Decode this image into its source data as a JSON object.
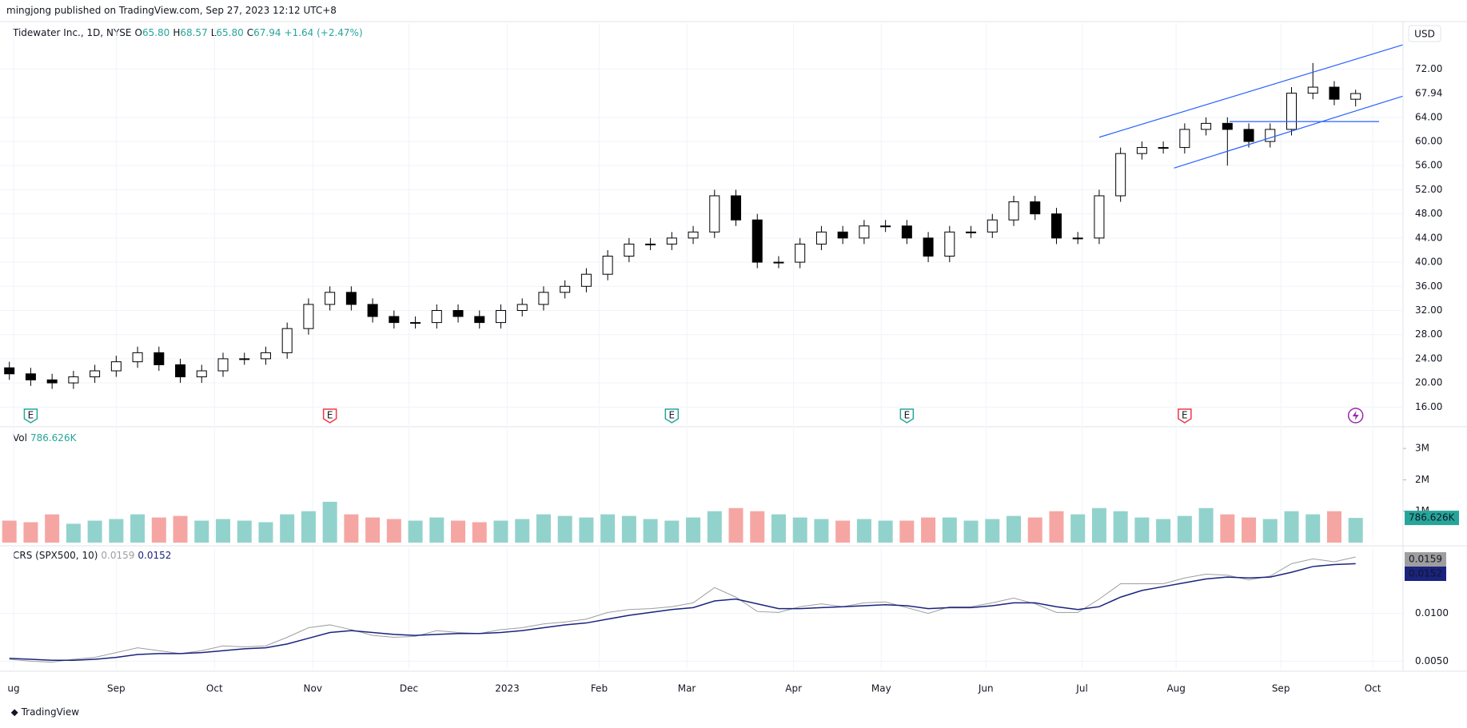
{
  "header": {
    "publisher": "mingjong published on TradingView.com, Sep 27, 2023 12:12 UTC+8",
    "footer": "TradingView"
  },
  "chart_data": [
    {
      "type": "candlestick",
      "title": "Tidewater Inc., 1D, NYSE",
      "legend": [
        {
          "key": "O",
          "text": "65.80"
        },
        {
          "key": "H",
          "text": "68.57"
        },
        {
          "key": "L",
          "text": "65.80"
        },
        {
          "key": "C",
          "text": "67.94"
        }
      ],
      "change": "+1.64 (+2.47%)",
      "currency": "USD",
      "last_label": "67.94",
      "up_color": "#ffffff",
      "down_color": "#000000",
      "grid": true,
      "open": [
        22.5,
        21.5,
        20.5,
        20,
        21,
        22,
        23.5,
        25,
        23,
        21,
        22,
        24,
        24,
        25,
        29,
        33,
        35,
        33,
        31,
        30,
        30,
        32,
        31,
        30,
        32,
        33,
        35,
        36,
        38,
        41,
        43,
        43,
        44,
        45,
        51,
        47,
        40,
        40,
        43,
        45,
        44,
        46,
        46,
        44,
        41,
        45,
        45,
        47,
        50,
        48,
        44,
        44,
        51,
        58,
        59,
        59,
        62,
        63,
        62,
        60,
        62,
        68,
        69,
        67
      ],
      "high": [
        23.5,
        22.5,
        21.5,
        22,
        23,
        24.5,
        26,
        26,
        24,
        23,
        25,
        25,
        26,
        30,
        34,
        36,
        36,
        34,
        32,
        31,
        33,
        33,
        32,
        33,
        34,
        36,
        37,
        39,
        42,
        44,
        44,
        45,
        46,
        52,
        52,
        48,
        41,
        44,
        46,
        46,
        47,
        47,
        47,
        45,
        46,
        46,
        48,
        51,
        51,
        49,
        45,
        52,
        59,
        60,
        60,
        63,
        64,
        64,
        63,
        63,
        69,
        73,
        70,
        68.57
      ],
      "low": [
        20.5,
        19.5,
        19,
        19,
        20,
        21,
        22.5,
        22,
        20,
        20,
        21,
        23,
        23,
        24,
        28,
        32,
        32,
        30,
        29,
        29,
        29,
        30,
        29,
        29,
        31,
        32,
        34,
        35,
        37,
        40,
        42,
        42,
        43,
        44,
        46,
        39,
        39,
        39,
        42,
        43,
        43,
        45,
        43,
        40,
        40,
        44,
        44,
        46,
        47,
        43,
        43,
        43,
        50,
        57,
        58,
        58,
        61,
        56,
        59,
        59,
        61,
        67,
        66,
        65.8
      ],
      "close": [
        21.5,
        20.5,
        20,
        21,
        22,
        23.5,
        25,
        23,
        21,
        22,
        24,
        24,
        25,
        29,
        33,
        35,
        33,
        31,
        30,
        30,
        32,
        31,
        30,
        32,
        33,
        35,
        36,
        38,
        41,
        43,
        43,
        44,
        45,
        51,
        47,
        40,
        40,
        43,
        45,
        44,
        46,
        46,
        44,
        41,
        45,
        45,
        47,
        50,
        48,
        44,
        44,
        51,
        58,
        59,
        59,
        62,
        63,
        62,
        60,
        62,
        68,
        69,
        67,
        67.94
      ],
      "ylim": [
        13,
        79.6
      ],
      "yticks": [
        {
          "value": 16,
          "label": "16.00"
        },
        {
          "value": 20,
          "label": "20.00"
        },
        {
          "value": 24,
          "label": "24.00"
        },
        {
          "value": 28,
          "label": "28.00"
        },
        {
          "value": 32,
          "label": "32.00"
        },
        {
          "value": 36,
          "label": "36.00"
        },
        {
          "value": 40,
          "label": "40.00"
        },
        {
          "value": 44,
          "label": "44.00"
        },
        {
          "value": 48,
          "label": "48.00"
        },
        {
          "value": 52,
          "label": "52.00"
        },
        {
          "value": 56,
          "label": "56.00"
        },
        {
          "value": 60,
          "label": "60.00"
        },
        {
          "value": 64,
          "label": "64.00"
        },
        {
          "value": 72,
          "label": "72.00"
        }
      ],
      "xticks": [
        {
          "value": 0.2,
          "label": "ug"
        },
        {
          "value": 5.0,
          "label": "Sep"
        },
        {
          "value": 9.6,
          "label": "Oct"
        },
        {
          "value": 14.2,
          "label": "Nov"
        },
        {
          "value": 18.7,
          "label": "Dec"
        },
        {
          "value": 23.3,
          "label": "2023"
        },
        {
          "value": 27.6,
          "label": "Feb"
        },
        {
          "value": 31.7,
          "label": "Mar"
        },
        {
          "value": 36.7,
          "label": "Apr"
        },
        {
          "value": 40.8,
          "label": "May"
        },
        {
          "value": 45.7,
          "label": "Jun"
        },
        {
          "value": 50.2,
          "label": "Jul"
        },
        {
          "value": 54.6,
          "label": "Aug"
        },
        {
          "value": 59.5,
          "label": "Sep"
        },
        {
          "value": 63.8,
          "label": "Oct"
        }
      ],
      "trendlines": [
        {
          "color": "#2962ff",
          "from": [
            51.0,
            60.7
          ],
          "to": [
            65.2,
            76.0
          ]
        },
        {
          "color": "#2962ff",
          "from": [
            54.5,
            55.6
          ],
          "to": [
            65.2,
            67.5
          ]
        },
        {
          "color": "#2962ff",
          "from": [
            57.1,
            63.3
          ],
          "to": [
            64.1,
            63.3
          ]
        }
      ],
      "events": [
        {
          "index": 1,
          "label": "E",
          "color": "#26a69a"
        },
        {
          "index": 15,
          "label": "E",
          "color": "#f23645"
        },
        {
          "index": 31,
          "label": "E",
          "color": "#26a69a"
        },
        {
          "index": 42,
          "label": "E",
          "color": "#26a69a"
        },
        {
          "index": 55,
          "label": "E",
          "color": "#f23645"
        },
        {
          "index": 63,
          "color": "#9c27b0"
        }
      ]
    },
    {
      "type": "bar",
      "title": "Vol",
      "legend_value": "786.626K",
      "last_label": "786.626K",
      "up_color": "#92d2cc",
      "down_color": "#f5a6a3",
      "label_color": "#26a69a",
      "values": [
        700000,
        650000,
        900000,
        600000,
        700000,
        750000,
        900000,
        800000,
        850000,
        700000,
        750000,
        700000,
        650000,
        900000,
        1000000,
        1300000,
        900000,
        800000,
        750000,
        700000,
        800000,
        700000,
        650000,
        700000,
        750000,
        900000,
        850000,
        800000,
        900000,
        850000,
        750000,
        700000,
        800000,
        1000000,
        1100000,
        1000000,
        900000,
        800000,
        750000,
        700000,
        750000,
        700000,
        700000,
        800000,
        800000,
        700000,
        750000,
        850000,
        800000,
        1000000,
        900000,
        1100000,
        1000000,
        800000,
        750000,
        850000,
        1100000,
        900000,
        800000,
        750000,
        1000000,
        900000,
        1000000,
        786626
      ],
      "ylim": [
        0,
        3640000
      ],
      "yticks": [
        {
          "value": 1000000,
          "label": "1M"
        },
        {
          "value": 2000000,
          "label": "2M"
        },
        {
          "value": 3000000,
          "label": "3M"
        }
      ]
    },
    {
      "type": "line",
      "title": "CRS (SPX500, 10)",
      "series": [
        {
          "color": "#9e9e9e",
          "value_label": "0.0159",
          "values": [
            0.0052,
            0.005,
            0.0049,
            0.0052,
            0.0054,
            0.0059,
            0.0064,
            0.0061,
            0.0058,
            0.0061,
            0.0066,
            0.0065,
            0.0066,
            0.0075,
            0.0085,
            0.0088,
            0.0083,
            0.0077,
            0.0075,
            0.0076,
            0.0082,
            0.008,
            0.0079,
            0.0083,
            0.0085,
            0.0089,
            0.0091,
            0.0094,
            0.0101,
            0.0104,
            0.0105,
            0.0107,
            0.0111,
            0.0127,
            0.0117,
            0.0102,
            0.0101,
            0.0107,
            0.011,
            0.0107,
            0.0111,
            0.0112,
            0.0106,
            0.01,
            0.0107,
            0.0107,
            0.0111,
            0.0116,
            0.011,
            0.0101,
            0.0101,
            0.0115,
            0.0131,
            0.0131,
            0.0131,
            0.0137,
            0.0141,
            0.014,
            0.0135,
            0.0139,
            0.0152,
            0.0157,
            0.0154,
            0.0159
          ]
        },
        {
          "color": "#1a237e",
          "value_label": "0.0152",
          "values": [
            0.0053,
            0.0052,
            0.0051,
            0.0051,
            0.0052,
            0.0054,
            0.0057,
            0.0058,
            0.0058,
            0.0059,
            0.0061,
            0.0063,
            0.0064,
            0.0068,
            0.0074,
            0.008,
            0.0082,
            0.008,
            0.0078,
            0.0077,
            0.0078,
            0.0079,
            0.0079,
            0.008,
            0.0082,
            0.0085,
            0.0088,
            0.009,
            0.0094,
            0.0098,
            0.0101,
            0.0104,
            0.0106,
            0.0113,
            0.0115,
            0.011,
            0.0105,
            0.0105,
            0.0106,
            0.0107,
            0.0108,
            0.0109,
            0.0108,
            0.0105,
            0.0106,
            0.0106,
            0.0108,
            0.0111,
            0.0111,
            0.0107,
            0.0104,
            0.0107,
            0.0117,
            0.0124,
            0.0128,
            0.0132,
            0.0136,
            0.0138,
            0.0137,
            0.0138,
            0.0143,
            0.0149,
            0.0151,
            0.0152
          ]
        }
      ],
      "ylim": [
        0.0042,
        0.0169
      ],
      "yticks": [
        {
          "value": 0.005,
          "label": "0.0050"
        },
        {
          "value": 0.01,
          "label": "0.0100"
        }
      ]
    }
  ]
}
